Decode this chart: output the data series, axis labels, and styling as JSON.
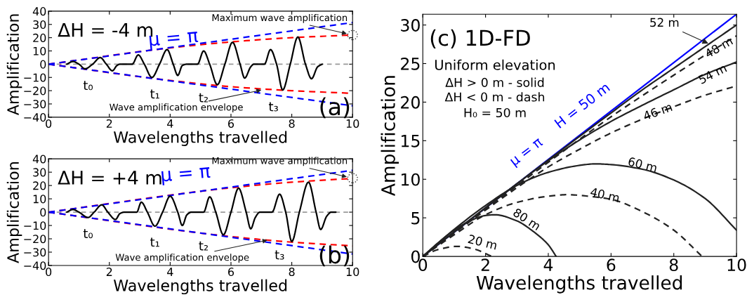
{
  "chart_data": [
    {
      "type": "line",
      "xlabel": "Wavelengths travelled",
      "ylabel": "Amplification",
      "xlim": [
        0,
        10
      ],
      "ylim": [
        -40,
        40
      ],
      "xticks": [
        0,
        2,
        4,
        6,
        8,
        10
      ],
      "yticks": [
        {
          "value": -40,
          "label": "−40"
        },
        {
          "value": -30,
          "label": "−30"
        },
        {
          "value": -20,
          "label": "−20"
        },
        {
          "value": -10,
          "label": "−10"
        },
        0,
        10,
        20,
        30,
        40
      ],
      "ref_lines": [
        {
          "axis": "y",
          "value": 0,
          "color": "#999999",
          "line_style": "dashed"
        }
      ],
      "series": [
        {
          "color": "#ff0000",
          "line_style": "dashed",
          "x": [
            0,
            4,
            6,
            8,
            10
          ],
          "values": [
            0,
            12.3,
            16.8,
            20,
            22
          ]
        },
        {
          "color": "#ff0000",
          "line_style": "dashed",
          "x": [
            0,
            4,
            6,
            8,
            10
          ],
          "values": [
            0,
            -12.3,
            -17,
            -20,
            -22
          ]
        },
        {
          "color": "#0000ff",
          "line_style": "dashed",
          "x": [
            0,
            10
          ],
          "values": [
            0,
            31.4
          ]
        },
        {
          "color": "#0000ff",
          "line_style": "dashed",
          "x": [
            0,
            10
          ],
          "values": [
            0,
            -31.4
          ]
        },
        {
          "color": "#000000",
          "line_style": "solid",
          "x": [
            0.6,
            0.8,
            1.0,
            1.2,
            1.45,
            1.7,
            1.9,
            2.1,
            2.25,
            2.35,
            2.75,
            2.95,
            3.15,
            3.4,
            3.65,
            3.9,
            4.1,
            4.25,
            4.4,
            4.55,
            4.9,
            5.1,
            5.3,
            5.55,
            5.8,
            6.05,
            6.3,
            6.45,
            6.65,
            6.75,
            7.1,
            7.3,
            7.5,
            7.7,
            7.95,
            8.2,
            8.45,
            8.65,
            8.85,
            9.0
          ],
          "values": [
            0,
            2,
            0,
            -3.5,
            0,
            5,
            0,
            -5,
            -1,
            0,
            0,
            7,
            0,
            -10,
            0,
            11,
            0,
            -8.5,
            -1,
            0,
            0,
            10,
            0,
            -15.5,
            0,
            16.5,
            0,
            -10.5,
            -2,
            0,
            0,
            11,
            0,
            -19.5,
            0,
            20.5,
            0,
            -11,
            -2,
            0
          ]
        }
      ],
      "annotations": [
        "ΔH = -4 m",
        "μ = π",
        "t₀",
        "t₁",
        "t₂",
        "t₃",
        {
          "text": "Wave amplification envelope",
          "x": 7.0,
          "y": -19.5
        },
        {
          "text": "Maximum wave amplification",
          "x": 10,
          "y": 22
        },
        "(a)"
      ]
    },
    {
      "type": "line",
      "xlabel": "Wavelengths travelled",
      "ylabel": "Amplification",
      "xlim": [
        0,
        10
      ],
      "ylim": [
        -40,
        40
      ],
      "xticks": [
        0,
        2,
        4,
        6,
        8,
        10
      ],
      "yticks": [
        {
          "value": -40,
          "label": "−40"
        },
        {
          "value": -30,
          "label": "−30"
        },
        {
          "value": -20,
          "label": "−20"
        },
        {
          "value": -10,
          "label": "−10"
        },
        0,
        10,
        20,
        30,
        40
      ],
      "ref_lines": [
        {
          "axis": "y",
          "value": 0,
          "color": "#999999",
          "line_style": "dashed"
        }
      ],
      "series": [
        {
          "color": "#ff0000",
          "line_style": "dashed",
          "x": [
            0,
            5,
            6,
            8,
            10
          ],
          "values": [
            0,
            15.7,
            18.3,
            22.5,
            25.3
          ]
        },
        {
          "color": "#ff0000",
          "line_style": "dashed",
          "x": [
            0,
            5,
            6,
            8,
            10
          ],
          "values": [
            0,
            -15.7,
            -18.3,
            -22.5,
            -25.3
          ]
        },
        {
          "color": "#0000ff",
          "line_style": "dashed",
          "x": [
            0,
            10
          ],
          "values": [
            0,
            31.4
          ]
        },
        {
          "color": "#0000ff",
          "line_style": "dashed",
          "x": [
            0,
            10
          ],
          "values": [
            0,
            -31.4
          ]
        },
        {
          "color": "#000000",
          "line_style": "solid",
          "x": [
            0.6,
            0.8,
            1.0,
            1.3,
            1.5,
            1.75,
            1.95,
            2.2,
            2.35,
            2.5,
            2.9,
            3.05,
            3.25,
            3.5,
            3.75,
            4.0,
            4.25,
            4.4,
            4.55,
            4.7,
            5.1,
            5.3,
            5.5,
            5.75,
            6.0,
            6.25,
            6.5,
            6.65,
            6.8,
            6.95,
            7.35,
            7.6,
            7.8,
            8.0,
            8.25,
            8.55,
            8.8,
            8.95,
            9.15,
            9.3,
            9.45
          ],
          "values": [
            0,
            2,
            0,
            -4,
            0,
            5.5,
            0,
            -5.5,
            -1,
            0,
            0,
            7.5,
            0,
            -10.5,
            0,
            12,
            0,
            -10,
            -2,
            0,
            0,
            11.5,
            0,
            -17,
            0,
            18,
            0,
            -12.5,
            -4,
            0,
            0,
            13.5,
            0,
            -22,
            0,
            22.5,
            0,
            -13,
            -3,
            0,
            0
          ]
        }
      ],
      "annotations": [
        "ΔH = +4 m",
        "μ = π",
        "t₀",
        "t₁",
        "t₂",
        "t₃",
        {
          "text": "Wave amplification envelope",
          "x": 7.2,
          "y": -21
        },
        {
          "text": "Maximum wave amplification",
          "x": 10,
          "y": 25.5
        },
        "(b)"
      ]
    },
    {
      "type": "line",
      "xlabel": "Wavelengths travelled",
      "ylabel": "Amplification",
      "xlim": [
        0,
        10
      ],
      "ylim": [
        0,
        31.4
      ],
      "xticks": [
        0,
        2,
        4,
        6,
        8,
        10
      ],
      "yticks": [
        0,
        5,
        10,
        15,
        20,
        25,
        30
      ],
      "series": [
        {
          "color": "#0000ff",
          "line_style": "solid",
          "x": [
            0,
            10
          ],
          "values": [
            0,
            31.4
          ]
        },
        {
          "color": "#222222",
          "line_style": "solid",
          "x": [
            0,
            2,
            4,
            6,
            7,
            8,
            9,
            10
          ],
          "values": [
            0,
            6.3,
            12.5,
            18.6,
            21.6,
            24.4,
            27.2,
            30.0
          ]
        },
        {
          "color": "#222222",
          "line_style": "dashed",
          "x": [
            0,
            2,
            4,
            6,
            8,
            9,
            10
          ],
          "values": [
            0,
            6.1,
            12.2,
            18.1,
            23.5,
            26.1,
            28.6
          ]
        },
        {
          "color": "#222222",
          "line_style": "solid",
          "x": [
            0,
            2,
            4,
            5,
            6,
            7,
            8,
            9,
            10
          ],
          "values": [
            0,
            6.3,
            12.4,
            15.1,
            17.5,
            19.6,
            21.6,
            23.6,
            25.2
          ]
        },
        {
          "color": "#222222",
          "line_style": "dashed",
          "x": [
            0,
            2,
            3,
            4,
            5,
            6,
            7,
            8,
            9,
            10
          ],
          "values": [
            0,
            6.0,
            8.9,
            11.6,
            13.9,
            16.0,
            17.8,
            19.4,
            20.9,
            22.1
          ]
        },
        {
          "color": "#222222",
          "line_style": "solid",
          "x": [
            0,
            1,
            2,
            3,
            4,
            5,
            5.5,
            6,
            7,
            8,
            9,
            10
          ],
          "values": [
            0,
            3.5,
            6.6,
            9.2,
            10.9,
            11.8,
            12.0,
            11.9,
            11.3,
            9.9,
            7.5,
            3.4
          ]
        },
        {
          "color": "#222222",
          "line_style": "dashed",
          "x": [
            0,
            1,
            2,
            3,
            4,
            4.6,
            5.5,
            6,
            7,
            8,
            8.9
          ],
          "values": [
            0,
            2.8,
            5.4,
            7.0,
            7.8,
            8.0,
            7.7,
            7.4,
            5.8,
            3.4,
            0
          ]
        },
        {
          "color": "#222222",
          "line_style": "solid",
          "x": [
            0,
            0.5,
            1,
            1.5,
            2,
            2.3,
            3,
            3.5,
            4,
            4.25
          ],
          "values": [
            0,
            1.8,
            3.4,
            4.6,
            5.3,
            5.4,
            4.6,
            3.3,
            1.5,
            0
          ]
        },
        {
          "color": "#222222",
          "line_style": "dashed",
          "x": [
            0,
            0.5,
            1.1,
            1.6,
            2.2
          ],
          "values": [
            0,
            0.9,
            1.3,
            1.0,
            0
          ]
        }
      ],
      "annotations": [
        "(c) 1D-FD",
        "Uniform elevation",
        "ΔH > 0 m - solid",
        "ΔH < 0 m - dash",
        "H₀ = 50 m",
        "μ = π",
        "H = 50 m",
        {
          "text": "52 m",
          "x": 9.1,
          "y": 27.6
        },
        "48 m",
        "54 m",
        "46 m",
        "60 m",
        "40 m",
        "80 m",
        "20 m"
      ]
    }
  ]
}
